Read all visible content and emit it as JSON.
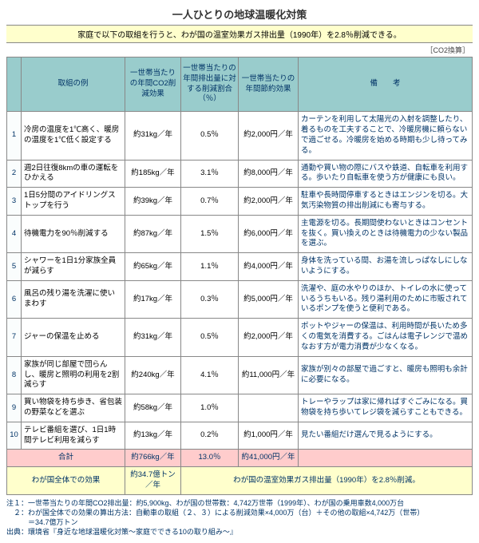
{
  "title": "一人ひとりの地球温暖化対策",
  "subtitle": "家庭で以下の取組を行うと、わが国の温室効果ガス排出量（1990年）を2.8％削減できる。",
  "unit_note": "［CO2換算］",
  "columns": {
    "num": "",
    "example": "取組の例",
    "effect": "一世帯当たりの年間CO2削減効果",
    "percent": "一世帯当たりの年間排出量に対する削減割合（％）",
    "yen": "一世帯当たりの年間節約効果",
    "note": "備　　考"
  },
  "rows": [
    {
      "n": "1",
      "ex": "冷房の温度を1℃高く、暖房の温度を1℃低く設定する",
      "eff": "約31kg／年",
      "pct": "0.5％",
      "yen": "約2,000円／年",
      "note": "カーテンを利用して太陽光の入射を調整したり、着るものを工夫することで、冷暖房機に頼らないで過ごせる。冷暖房を始める時期も少し待ってみる。"
    },
    {
      "n": "2",
      "ex": "週2日往復8kmの車の運転をひかえる",
      "eff": "約185kg／年",
      "pct": "3.1％",
      "yen": "約8,000円／年",
      "note": "通勤や買い物の際にバスや鉄道、自転車を利用する。歩いたり自転車を使う方が健康にも良い。"
    },
    {
      "n": "3",
      "ex": "1日5分間のアイドリングストップを行う",
      "eff": "約39kg／年",
      "pct": "0.7％",
      "yen": "約2,000円／年",
      "note": "駐車や長時間停車するときはエンジンを切る。大気汚染物質の排出削減にも寄与する。"
    },
    {
      "n": "4",
      "ex": "待機電力を90％削減する",
      "eff": "約87kg／年",
      "pct": "1.5％",
      "yen": "約6,000円／年",
      "note": "主電源を切る。長期間使わないときはコンセントを抜く。買い換えのときは待機電力の少ない製品を選ぶ。"
    },
    {
      "n": "5",
      "ex": "シャワーを1日1分家族全員が減らす",
      "eff": "約65kg／年",
      "pct": "1.1％",
      "yen": "約4,000円／年",
      "note": "身体を洗っている間、お湯を流しっぱなしにしないようにする。"
    },
    {
      "n": "6",
      "ex": "風呂の残り湯を洗濯に使いまわす",
      "eff": "約17kg／年",
      "pct": "0.3％",
      "yen": "約5,000円／年",
      "note": "洗濯や、庭の水やりのほか、トイレの水に使っているうちもいる。残り湯利用のために市販されているポンプを使うと便利である。"
    },
    {
      "n": "7",
      "ex": "ジャーの保温を止める",
      "eff": "約31kg／年",
      "pct": "0.5％",
      "yen": "約2,000円／年",
      "note": "ポットやジャーの保温は、利用時間が長いため多くの電気を消費する。ごはんは電子レンジで温めなおす方が電力消費が少なくなる。"
    },
    {
      "n": "8",
      "ex": "家族が同じ部屋で団らんし、暖房と照明の利用を2割減らす",
      "eff": "約240kg／年",
      "pct": "4.1％",
      "yen": "約11,000円／年",
      "note": "家族が別々の部屋で過ごすと、暖房も照明も余計に必要になる。"
    },
    {
      "n": "9",
      "ex": "買い物袋を持ち歩き、省包装の野菜などを選ぶ",
      "eff": "約58kg／年",
      "pct": "1.0％",
      "yen": "",
      "note": "トレーやラップは家に帰ればすぐごみになる。買物袋を持ち歩いてレジ袋を減らすこともできる。"
    },
    {
      "n": "10",
      "ex": "テレビ番組を選び、1日1時間テレビ利用を減らす",
      "eff": "約13kg／年",
      "pct": "0.2％",
      "yen": "約1,000円／年",
      "note": "見たい番組だけ選んで見るようにする。"
    }
  ],
  "total": {
    "label": "合計",
    "eff": "約766kg／年",
    "pct": "13.0％",
    "yen": "約41,000円／年"
  },
  "grand": {
    "label": "わが国全体での効果",
    "eff": "約34.7億トン／年",
    "note": "わが国の温室効果ガス排出量（1990年）を2.8％削減。"
  },
  "footnotes": {
    "n1": "注１：一世帯当たりの年間CO2排出量：約5,900kg、わが国の世帯数：4,742万世帯（1999年）、わが国の乗用車数4,000万台",
    "n2": "　２：わが国全体での効果の算出方法：自動車の取組（２、３）による削減効果×4,000万（台）＋その他の取組×4,742万（世帯）",
    "n3": "　　　＝34.7億万トン",
    "src": "出典：環境省『身近な地球温暖化対策～家庭でできる10の取り組み～』"
  }
}
